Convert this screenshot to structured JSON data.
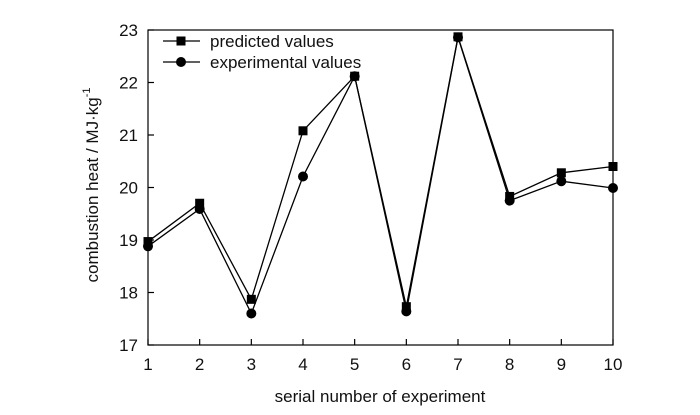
{
  "chart_data": {
    "type": "line",
    "x": [
      1,
      2,
      3,
      4,
      5,
      6,
      7,
      8,
      9,
      10
    ],
    "series": [
      {
        "name": "predicted values",
        "marker": "square",
        "values": [
          18.97,
          19.7,
          17.87,
          21.08,
          22.12,
          17.73,
          22.87,
          19.83,
          20.28,
          20.4
        ]
      },
      {
        "name": "experimental values",
        "marker": "circle",
        "values": [
          18.88,
          19.59,
          17.6,
          20.21,
          22.12,
          17.64,
          22.86,
          19.75,
          20.12,
          19.99
        ]
      }
    ],
    "xlabel": "serial number of experiment",
    "ylabel_main": "combustion heat / MJ·kg",
    "ylabel_sup": "-1",
    "xlim": [
      1,
      10
    ],
    "ylim": [
      17,
      23
    ],
    "xticks": [
      "1",
      "2",
      "3",
      "4",
      "5",
      "6",
      "7",
      "8",
      "9",
      "10"
    ],
    "yticks": [
      "17",
      "18",
      "19",
      "20",
      "21",
      "22",
      "23"
    ],
    "grid": false,
    "legend_position": "top-left",
    "line_color": "#000000"
  }
}
